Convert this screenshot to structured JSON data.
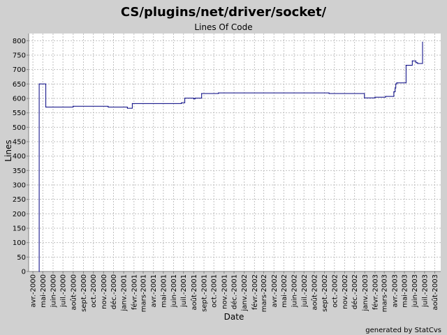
{
  "chart_data": {
    "type": "line",
    "title": "CS/plugins/net/driver/socket/",
    "subtitle": "Lines Of Code",
    "xlabel": "Date",
    "ylabel": "Lines",
    "ylim": [
      0,
      825
    ],
    "yticks": [
      0,
      50,
      100,
      150,
      200,
      250,
      300,
      350,
      400,
      450,
      500,
      550,
      600,
      650,
      700,
      750,
      800
    ],
    "xlim": [
      "2000-03-19",
      "2003-08-19"
    ],
    "xticks": [
      {
        "date": "2000-04-01",
        "label": "avr.-2000"
      },
      {
        "date": "2000-05-01",
        "label": "mai-2000"
      },
      {
        "date": "2000-06-01",
        "label": "juin-2000"
      },
      {
        "date": "2000-07-01",
        "label": "juil.-2000"
      },
      {
        "date": "2000-08-01",
        "label": "août-2000"
      },
      {
        "date": "2000-09-01",
        "label": "sept.-2000"
      },
      {
        "date": "2000-10-01",
        "label": "oct.-2000"
      },
      {
        "date": "2000-11-01",
        "label": "nov.-2000"
      },
      {
        "date": "2000-12-01",
        "label": "déc.-2000"
      },
      {
        "date": "2001-01-01",
        "label": "janv.-2001"
      },
      {
        "date": "2001-02-01",
        "label": "févr.-2001"
      },
      {
        "date": "2001-03-01",
        "label": "mars-2001"
      },
      {
        "date": "2001-04-01",
        "label": "avr.-2001"
      },
      {
        "date": "2001-05-01",
        "label": "mai-2001"
      },
      {
        "date": "2001-06-01",
        "label": "juin-2001"
      },
      {
        "date": "2001-07-01",
        "label": "juil.-2001"
      },
      {
        "date": "2001-08-01",
        "label": "août-2001"
      },
      {
        "date": "2001-09-01",
        "label": "sept.-2001"
      },
      {
        "date": "2001-10-01",
        "label": "oct.-2001"
      },
      {
        "date": "2001-11-01",
        "label": "nov.-2001"
      },
      {
        "date": "2001-12-01",
        "label": "déc.-2001"
      },
      {
        "date": "2002-01-01",
        "label": "janv.-2002"
      },
      {
        "date": "2002-02-01",
        "label": "févr.-2002"
      },
      {
        "date": "2002-03-01",
        "label": "mars-2002"
      },
      {
        "date": "2002-04-01",
        "label": "avr.-2002"
      },
      {
        "date": "2002-05-01",
        "label": "mai-2002"
      },
      {
        "date": "2002-06-01",
        "label": "juin-2002"
      },
      {
        "date": "2002-07-01",
        "label": "juil.-2002"
      },
      {
        "date": "2002-08-01",
        "label": "août-2002"
      },
      {
        "date": "2002-09-01",
        "label": "sept.-2002"
      },
      {
        "date": "2002-10-01",
        "label": "oct.-2002"
      },
      {
        "date": "2002-11-01",
        "label": "nov.-2002"
      },
      {
        "date": "2002-12-01",
        "label": "déc.-2002"
      },
      {
        "date": "2003-01-01",
        "label": "janv.-2003"
      },
      {
        "date": "2003-02-01",
        "label": "févr.-2003"
      },
      {
        "date": "2003-03-01",
        "label": "mars-2003"
      },
      {
        "date": "2003-04-01",
        "label": "avr.-2003"
      },
      {
        "date": "2003-05-01",
        "label": "mai-2003"
      },
      {
        "date": "2003-06-01",
        "label": "juin-2003"
      },
      {
        "date": "2003-07-01",
        "label": "juil.-2003"
      },
      {
        "date": "2003-08-01",
        "label": "août-2003"
      }
    ],
    "grid": true,
    "series": [
      {
        "color": "#000080",
        "points": [
          {
            "x": "2000-04-20",
            "y": 0
          },
          {
            "x": "2000-04-20",
            "y": 650
          },
          {
            "x": "2000-05-10",
            "y": 570
          },
          {
            "x": "2000-08-01",
            "y": 573
          },
          {
            "x": "2000-11-15",
            "y": 570
          },
          {
            "x": "2001-01-12",
            "y": 566
          },
          {
            "x": "2001-01-27",
            "y": 582
          },
          {
            "x": "2001-06-25",
            "y": 585
          },
          {
            "x": "2001-07-05",
            "y": 601
          },
          {
            "x": "2001-08-01",
            "y": 598
          },
          {
            "x": "2001-08-05",
            "y": 601
          },
          {
            "x": "2001-08-25",
            "y": 617
          },
          {
            "x": "2001-10-15",
            "y": 619
          },
          {
            "x": "2002-09-15",
            "y": 617
          },
          {
            "x": "2002-12-31",
            "y": 602
          },
          {
            "x": "2003-02-01",
            "y": 604
          },
          {
            "x": "2003-03-05",
            "y": 607
          },
          {
            "x": "2003-03-30",
            "y": 623
          },
          {
            "x": "2003-04-03",
            "y": 636
          },
          {
            "x": "2003-04-05",
            "y": 650
          },
          {
            "x": "2003-04-08",
            "y": 654
          },
          {
            "x": "2003-05-06",
            "y": 715
          },
          {
            "x": "2003-05-25",
            "y": 730
          },
          {
            "x": "2003-06-05",
            "y": 724
          },
          {
            "x": "2003-06-10",
            "y": 721
          },
          {
            "x": "2003-06-25",
            "y": 795
          }
        ]
      }
    ]
  },
  "footer": "generated by StatCvs"
}
